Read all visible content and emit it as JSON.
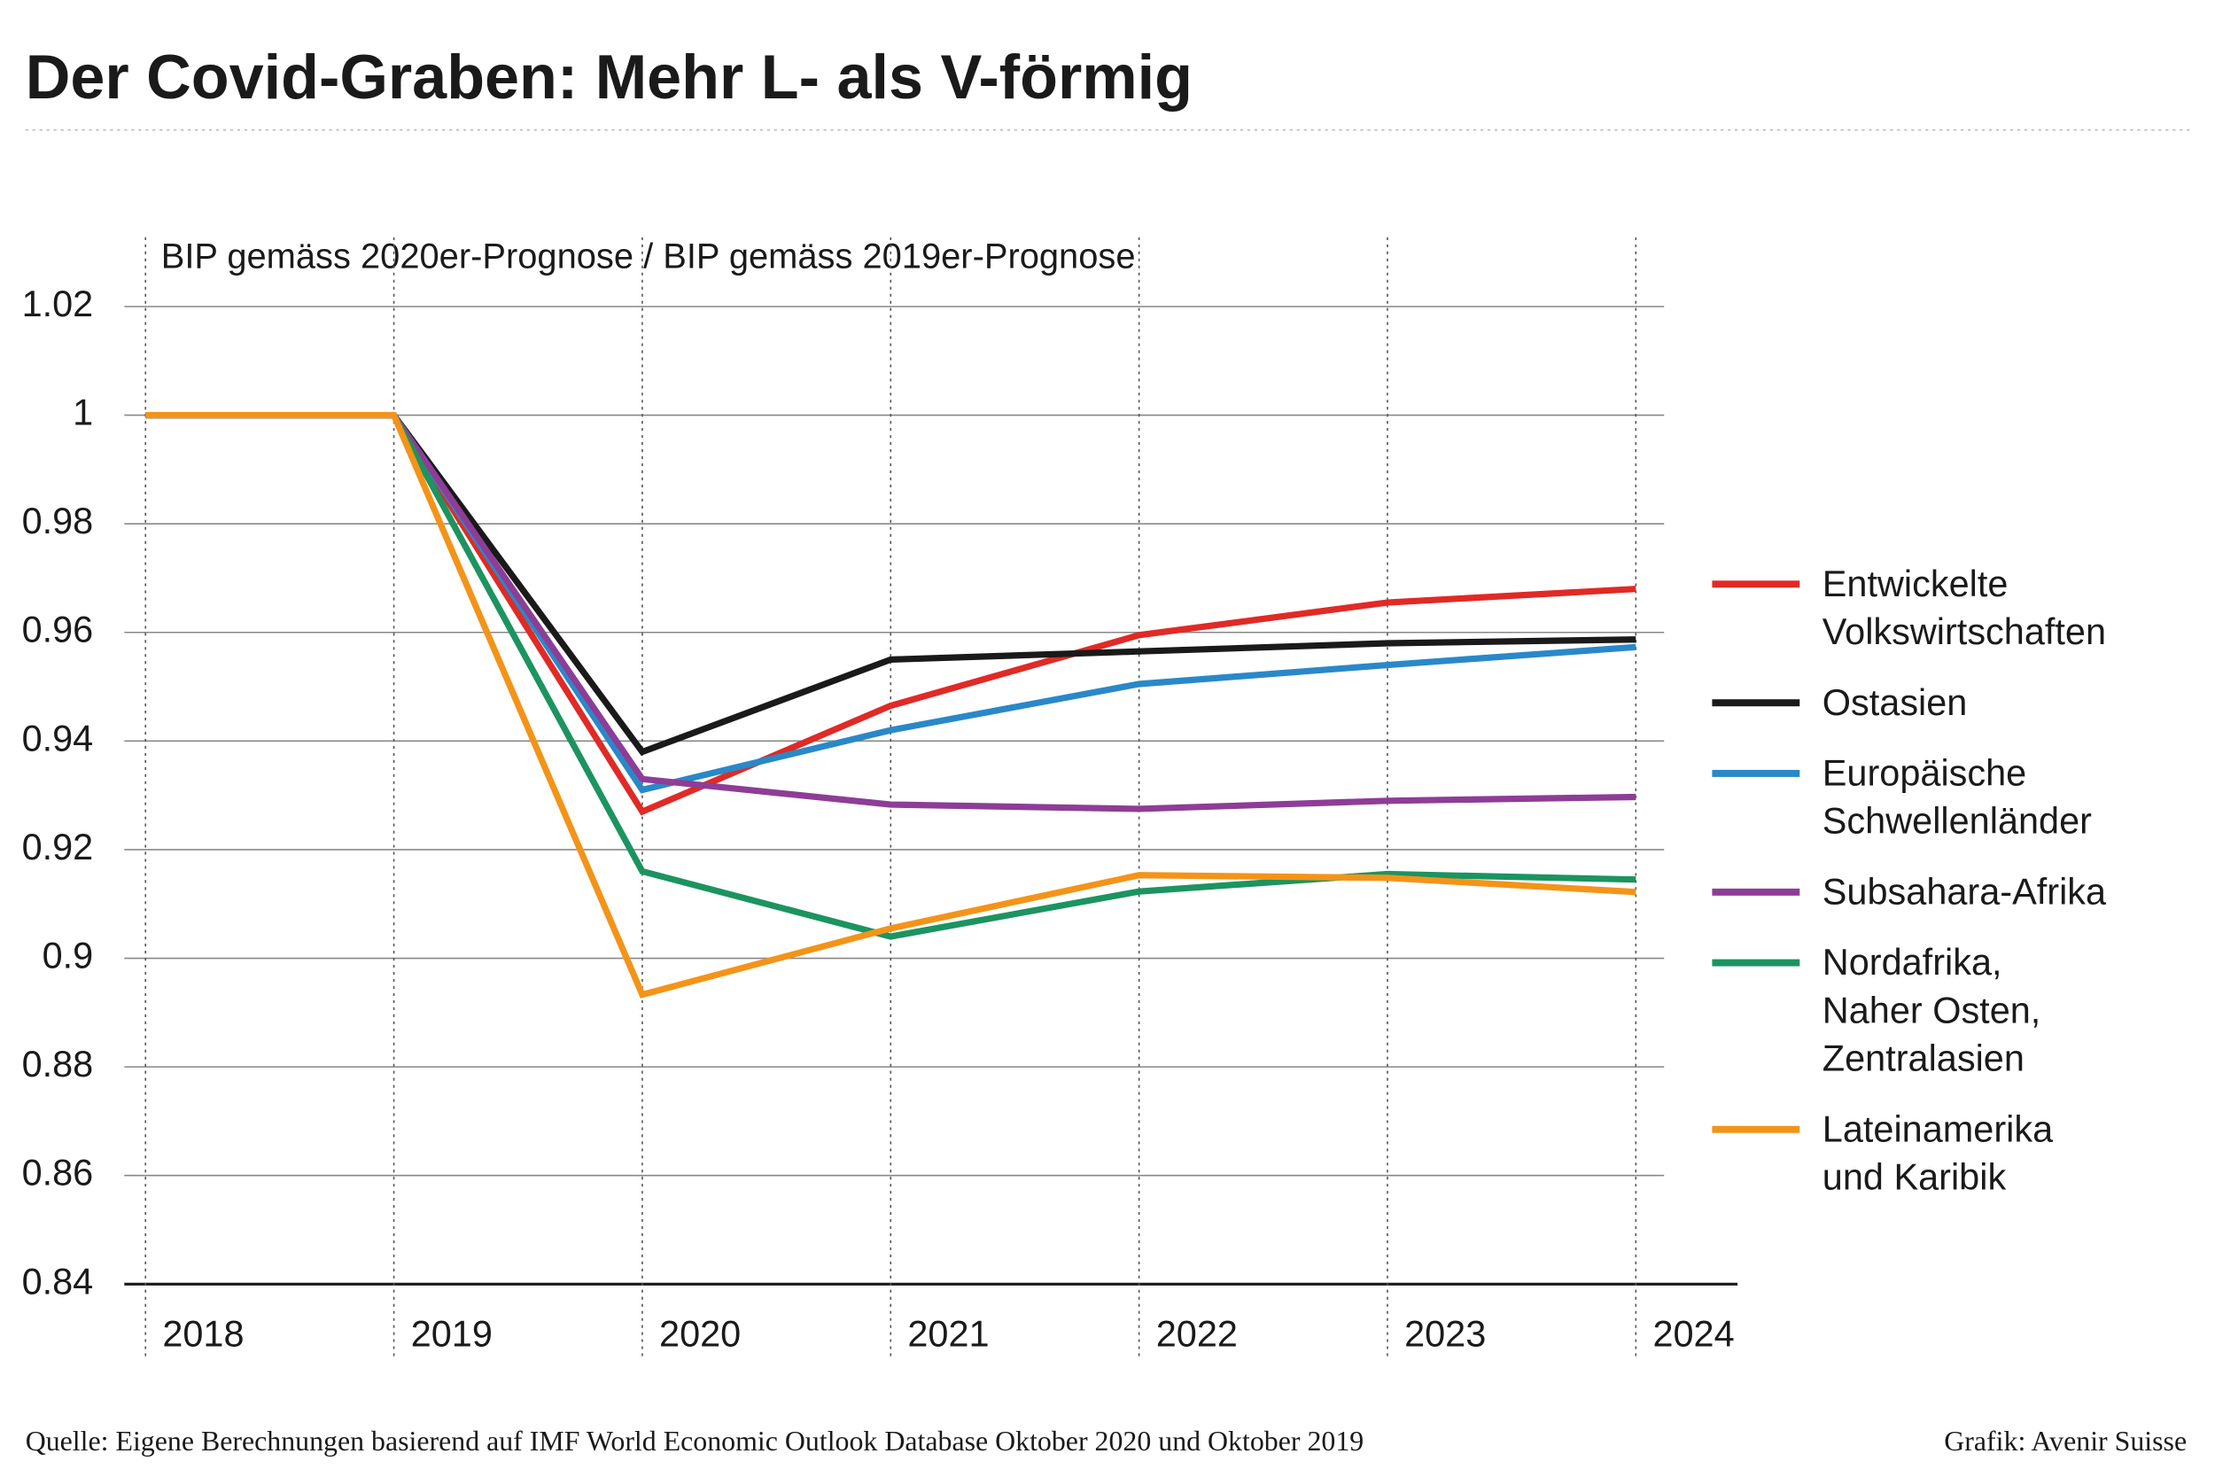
{
  "chart_data": {
    "type": "line",
    "title": "Der Covid-Graben: Mehr L- als V-förmig",
    "subtitle": "BIP gemäss 2020er-Prognose / BIP gemäss 2019er-Prognose",
    "source": "Quelle: Eigene Berechnungen basierend auf IMF World Economic Outlook Database Oktober 2020 und Oktober 2019",
    "credit": "Grafik: Avenir Suisse",
    "x": [
      2018,
      2019,
      2020,
      2021,
      2022,
      2023,
      2024
    ],
    "xlim": [
      2018,
      2024
    ],
    "xticks": [
      2018,
      2019,
      2020,
      2021,
      2022,
      2023,
      2024
    ],
    "ylim": [
      0.84,
      1.02
    ],
    "yticks": [
      1.02,
      1,
      0.98,
      0.96,
      0.94,
      0.92,
      0.9,
      0.88,
      0.86,
      0.84
    ],
    "grid": true,
    "legend": "right",
    "series": [
      {
        "name": "Entwickelte\nVolkswirtschaften",
        "color": "#e02a26",
        "values": [
          1,
          1,
          0.927,
          0.9465,
          0.9595,
          0.9655,
          0.968
        ]
      },
      {
        "name": "Ostasien",
        "color": "#1a1a1a",
        "values": [
          1,
          1,
          0.938,
          0.955,
          0.9565,
          0.958,
          0.9587
        ]
      },
      {
        "name": "Europäische\nSchwellenländer",
        "color": "#2a88c8",
        "values": [
          1,
          1,
          0.931,
          0.942,
          0.9505,
          0.954,
          0.9573
        ]
      },
      {
        "name": "Subsahara-Afrika",
        "color": "#8e3d97",
        "values": [
          1,
          1,
          0.933,
          0.9283,
          0.9275,
          0.929,
          0.9297
        ]
      },
      {
        "name": "Nordafrika,\nNaher Osten,\nZentralasien",
        "color": "#1c9460",
        "values": [
          1,
          1,
          0.916,
          0.904,
          0.9123,
          0.9155,
          0.9145
        ]
      },
      {
        "name": "Lateinamerika\nund Karibik",
        "color": "#f39419",
        "values": [
          1,
          1,
          0.8933,
          0.9055,
          0.9153,
          0.9148,
          0.9122
        ]
      }
    ]
  }
}
